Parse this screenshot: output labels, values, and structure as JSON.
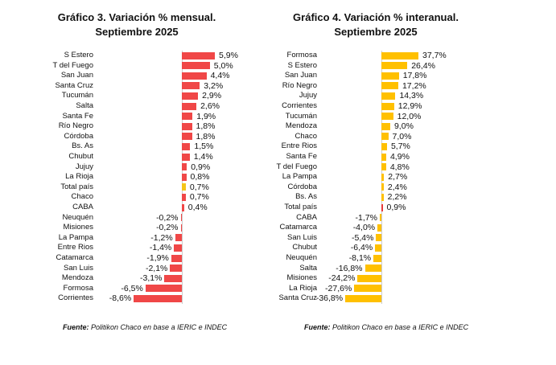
{
  "chart_data": [
    {
      "type": "bar",
      "orientation": "horizontal",
      "title_line1": "Gráfico 3. Variación % mensual.",
      "title_line2": "Septiembre 2025",
      "categories": [
        "S Estero",
        "T del Fuego",
        "San Juan",
        "Santa Cruz",
        "Tucumán",
        "Salta",
        "Santa Fe",
        "Río Negro",
        "Córdoba",
        "Bs. As",
        "Chubut",
        "Jujuy",
        "La Rioja",
        "Total país",
        "Chaco",
        "CABA",
        "Neuquén",
        "Misiones",
        "La Pampa",
        "Entre Rios",
        "Catamarca",
        "San Luis",
        "Mendoza",
        "Formosa",
        "Corrientes"
      ],
      "values": [
        5.9,
        5.0,
        4.4,
        3.2,
        2.9,
        2.6,
        1.9,
        1.8,
        1.8,
        1.5,
        1.4,
        0.9,
        0.8,
        0.7,
        0.7,
        0.4,
        -0.2,
        -0.2,
        -1.2,
        -1.4,
        -1.9,
        -2.1,
        -3.1,
        -6.5,
        -8.6
      ],
      "labels": [
        "5,9%",
        "5,0%",
        "4,4%",
        "3,2%",
        "2,9%",
        "2,6%",
        "1,9%",
        "1,8%",
        "1,8%",
        "1,5%",
        "1,4%",
        "0,9%",
        "0,8%",
        "0,7%",
        "0,7%",
        "0,4%",
        "-0,2%",
        "-0,2%",
        "-1,2%",
        "-1,4%",
        "-1,9%",
        "-2,1%",
        "-3,1%",
        "-6,5%",
        "-8,6%"
      ],
      "bar_color": "#f04747",
      "highlight_category": "Total país",
      "highlight_color": "#f5c518",
      "footer_bold": "Fuente:",
      "footer": " Politikon Chaco en base a IERIC e INDEC"
    },
    {
      "type": "bar",
      "orientation": "horizontal",
      "title_line1": "Gráfico 4. Variación % interanual.",
      "title_line2": "Septiembre 2025",
      "categories": [
        "Formosa",
        "S Estero",
        "San Juan",
        "Río Negro",
        "Jujuy",
        "Corrientes",
        "Tucumán",
        "Mendoza",
        "Chaco",
        "Entre Rios",
        "Santa Fe",
        "T del Fuego",
        "La Pampa",
        "Córdoba",
        "Bs. As",
        "Total país",
        "CABA",
        "Catamarca",
        "San Luis",
        "Chubut",
        "Neuquén",
        "Salta",
        "Misiones",
        "La Rioja",
        "Santa Cruz"
      ],
      "values": [
        37.7,
        26.4,
        17.8,
        17.2,
        14.3,
        12.9,
        12.0,
        9.0,
        7.0,
        5.7,
        4.9,
        4.8,
        2.7,
        2.4,
        2.2,
        0.9,
        -1.7,
        -4.0,
        -5.4,
        -6.4,
        -8.1,
        -16.8,
        -24.2,
        -27.6,
        -36.8
      ],
      "labels": [
        "37,7%",
        "26,4%",
        "17,8%",
        "17,2%",
        "14,3%",
        "12,9%",
        "12,0%",
        "9,0%",
        "7,0%",
        "5,7%",
        "4,9%",
        "4,8%",
        "2,7%",
        "2,4%",
        "2,2%",
        "0,9%",
        "-1,7%",
        "-4,0%",
        "-5,4%",
        "-6,4%",
        "-8,1%",
        "-16,8%",
        "-24,2%",
        "-27,6%",
        "-36,8%"
      ],
      "bar_color": "#ffc000",
      "highlight_category": "Total país",
      "highlight_color": "#e83a3a",
      "footer_bold": "Fuente:",
      "footer": " Politikon Chaco en base a IERIC e INDEC"
    }
  ]
}
